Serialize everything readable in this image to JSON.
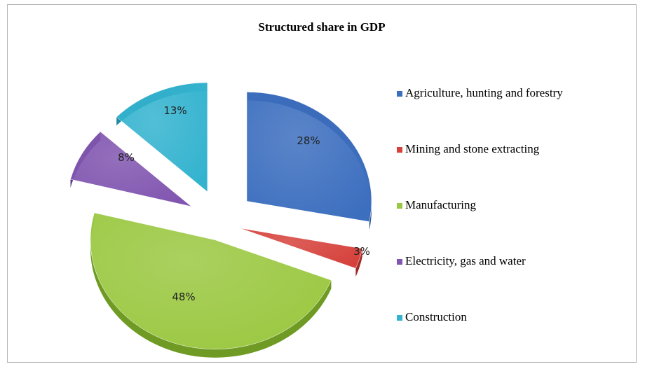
{
  "chart_data": {
    "type": "pie",
    "title": "Structured share in GDP",
    "slices": [
      {
        "label": "Agriculture, hunting and forestry",
        "value": 28,
        "display": "28%",
        "color": "#3d6fbf",
        "shade": "#2c5596"
      },
      {
        "label": "Mining and stone extracting",
        "value": 3,
        "display": "3%",
        "color": "#d6413b",
        "shade": "#a02a26"
      },
      {
        "label": "Manufacturing",
        "value": 48,
        "display": "48%",
        "color": "#9bc842",
        "shade": "#6f9a24"
      },
      {
        "label": "Electricity, gas and water",
        "value": 8,
        "display": "8%",
        "color": "#8156b0",
        "shade": "#5c3a86"
      },
      {
        "label": "Construction",
        "value": 13,
        "display": "13%",
        "color": "#34b3cf",
        "shade": "#1f8aa3"
      }
    ],
    "legend_position": "right",
    "exploded": true
  }
}
